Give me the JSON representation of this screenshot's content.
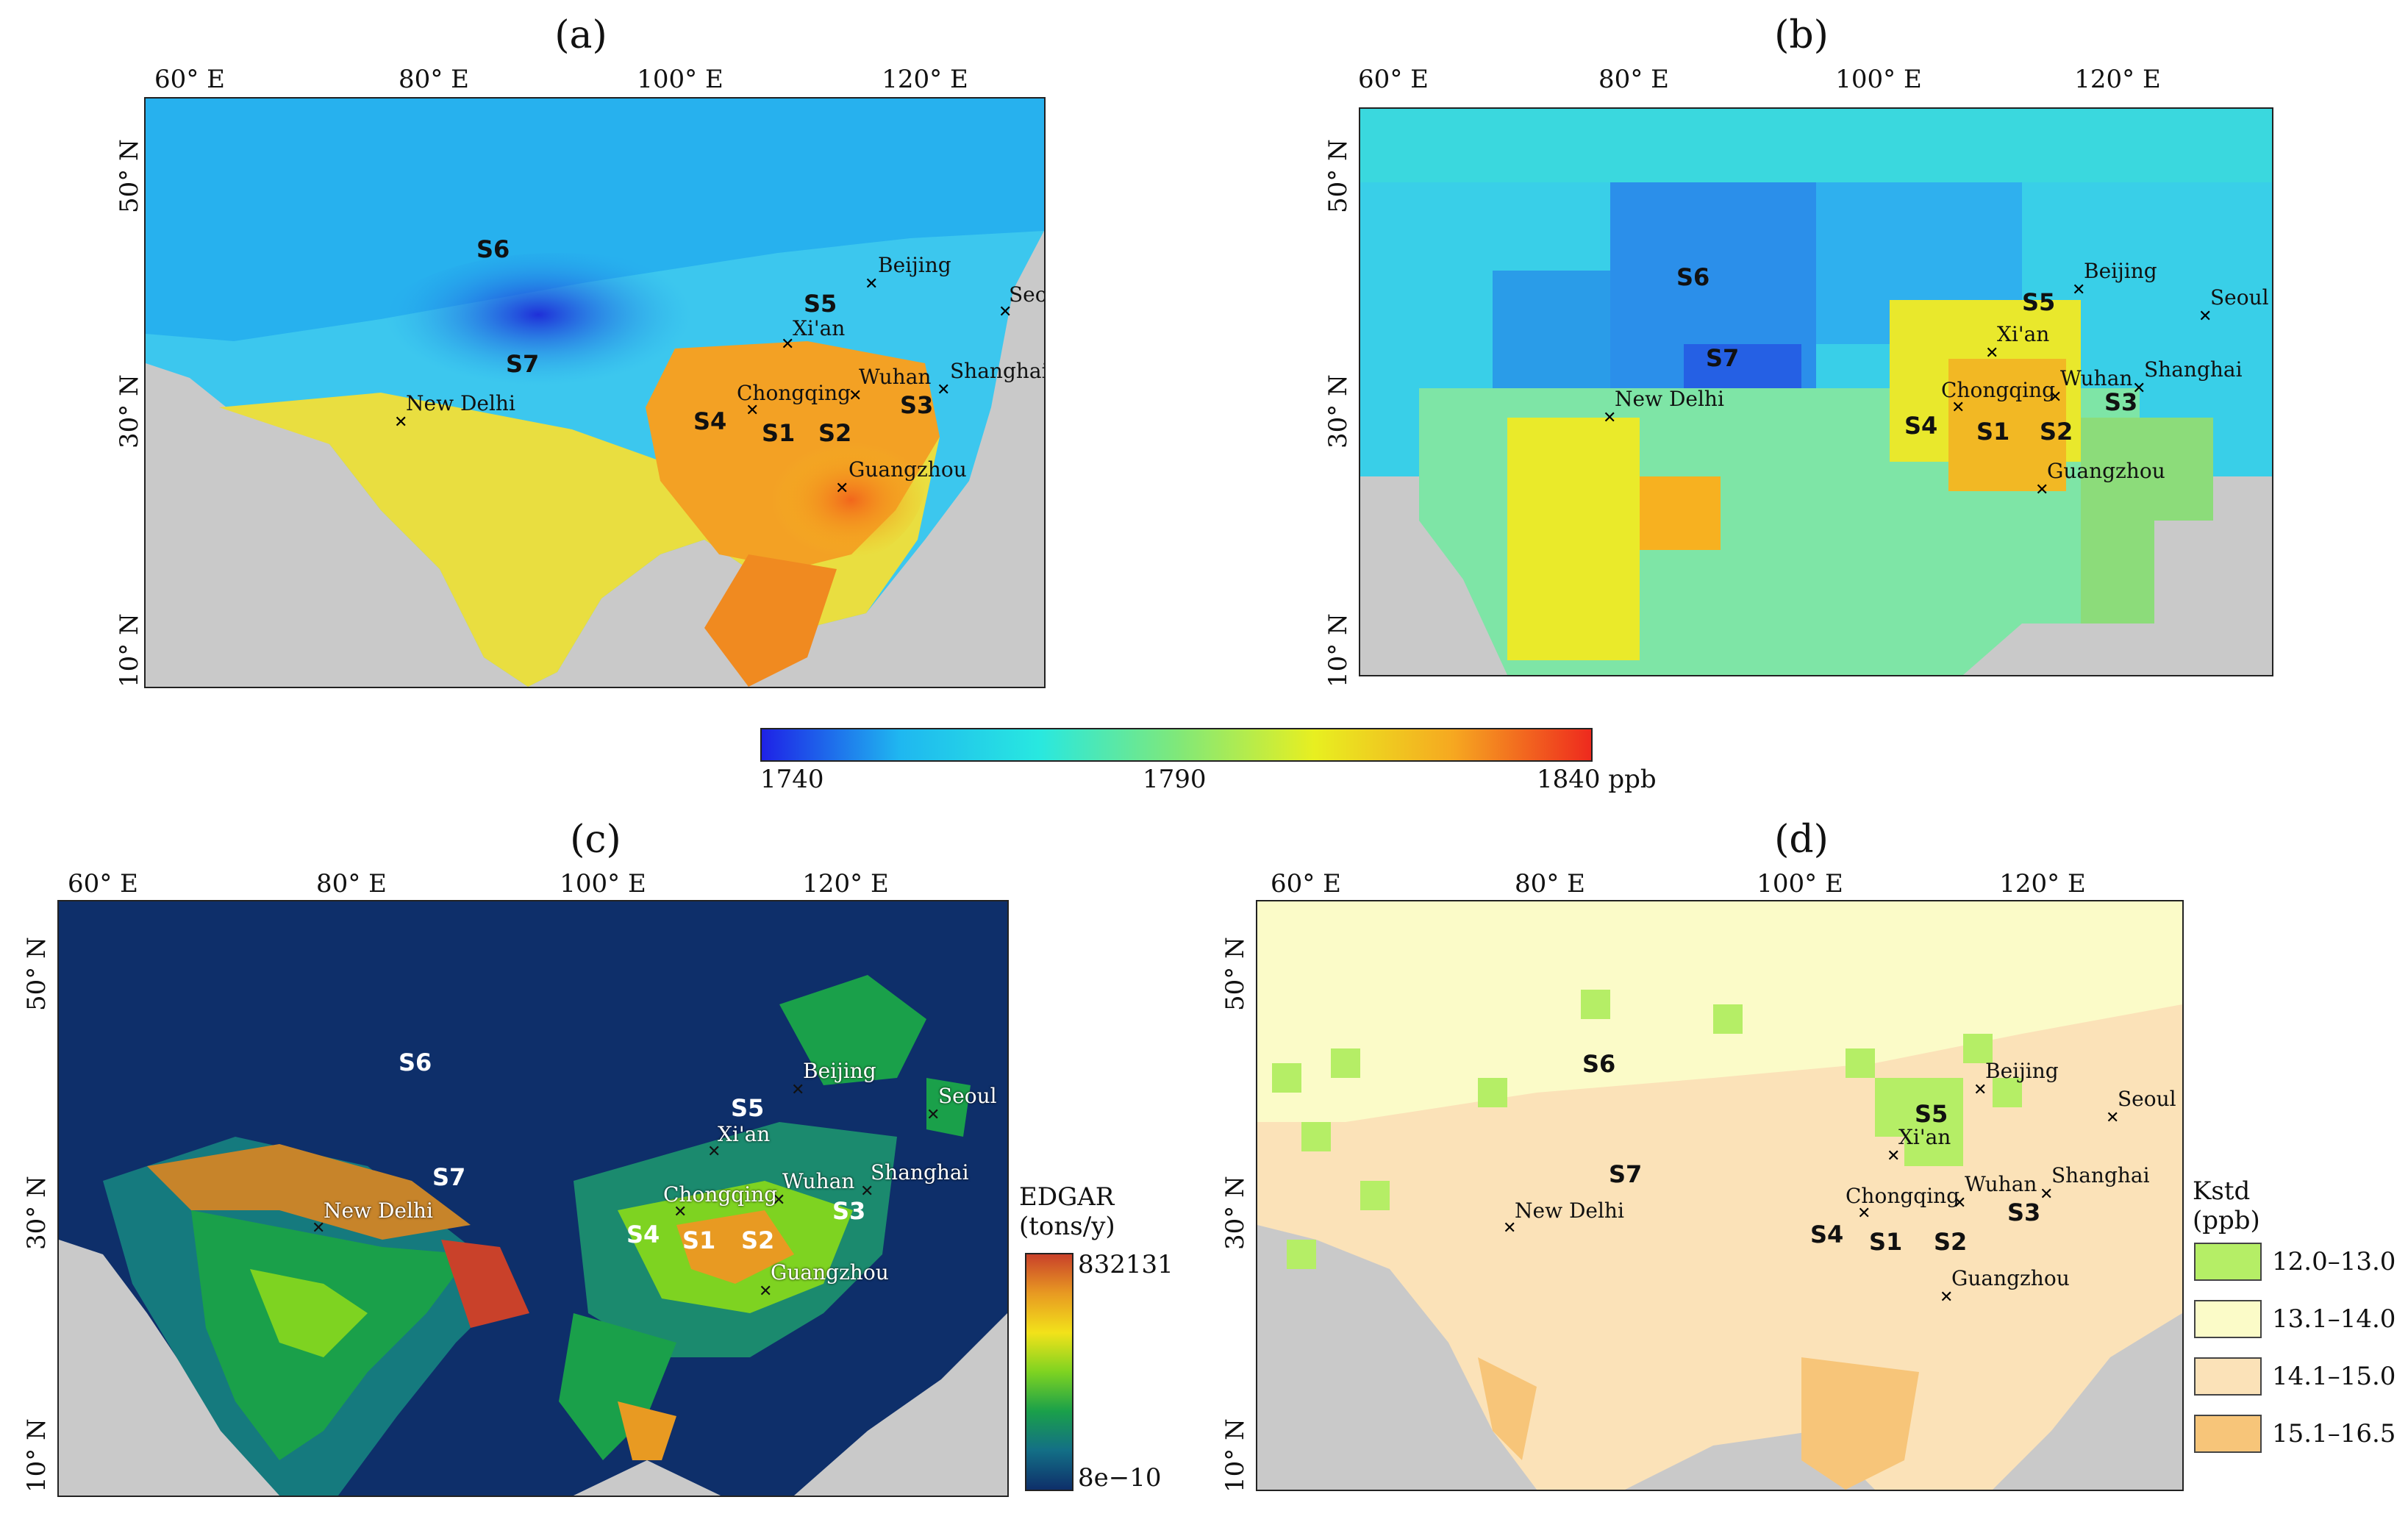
{
  "panels": {
    "a": {
      "label": "(a)"
    },
    "b": {
      "label": "(b)"
    },
    "c": {
      "label": "(c)"
    },
    "d": {
      "label": "(d)"
    }
  },
  "axes": {
    "lon": [
      "60° E",
      "80° E",
      "100° E",
      "120° E"
    ],
    "lat": [
      "50° N",
      "30° N",
      "10° N"
    ]
  },
  "regions": [
    "S1",
    "S2",
    "S3",
    "S4",
    "S5",
    "S6",
    "S7"
  ],
  "cities": [
    "Beijing",
    "Seoul",
    "Xi'an",
    "Shanghai",
    "Wuhan",
    "Chongqing",
    "New Delhi",
    "Guangzhou"
  ],
  "colorbar": {
    "min_label": "1740",
    "mid_label": "1790",
    "max_label": "1840 ppb",
    "colors": [
      "#1e22e6",
      "#1fb7f0",
      "#28e8e0",
      "#7fe87a",
      "#e8ef20",
      "#f6a820",
      "#ee2a1e"
    ]
  },
  "edgar_legend": {
    "title_line1": "EDGAR",
    "title_line2": "(tons/y)",
    "max_label": "832131",
    "min_label": "8e−10",
    "colors": [
      "#0e2f6a",
      "#136f86",
      "#1aa04a",
      "#7ed321",
      "#f2e21a",
      "#e89a22",
      "#c9412a"
    ]
  },
  "kstd_legend": {
    "title_line1": "Kstd",
    "title_line2": "(ppb)",
    "items": [
      {
        "label": "12.0–13.0",
        "color": "#b5ee66"
      },
      {
        "label": "13.1–14.0",
        "color": "#fbfbc8"
      },
      {
        "label": "14.1–15.0",
        "color": "#fbe2b8"
      },
      {
        "label": "15.1–16.5",
        "color": "#f7c579"
      }
    ]
  }
}
